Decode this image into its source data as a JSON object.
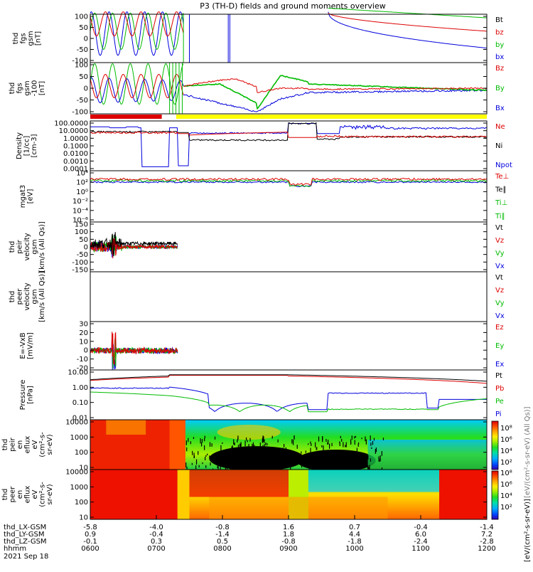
{
  "chart_data": {
    "type": "line",
    "title": "P3 (TH-D) fields and ground moments overview",
    "panels": [
      {
        "id": "fgs_gsm",
        "ylabel": [
          "thd",
          "fgs",
          "gsm",
          "[nT]"
        ],
        "yticks": [
          100,
          50,
          0,
          -50,
          -100
        ],
        "ylim": [
          -100,
          100
        ],
        "legend": [
          {
            "name": "Bt",
            "color": "#000000"
          },
          {
            "name": "bz",
            "color": "#dd0000"
          },
          {
            "name": "by",
            "color": "#00bb00"
          },
          {
            "name": "bx",
            "color": "#0000dd"
          }
        ]
      },
      {
        "id": "fgs_gsm_lim",
        "ylabel": [
          "thd",
          "fgs",
          "gsm",
          "-100",
          "[nT]"
        ],
        "yticks": [
          100,
          50,
          0,
          -50,
          -100
        ],
        "ylim": [
          -120,
          120
        ],
        "legend": [
          {
            "name": "Bz",
            "color": "#dd0000"
          },
          {
            "name": "By",
            "color": "#00bb00"
          },
          {
            "name": "Bx",
            "color": "#0000dd"
          }
        ]
      },
      {
        "id": "density",
        "ylabel": [
          "Density",
          "[1/cc]",
          "[cm-3]"
        ],
        "yticks": [
          "100.0000",
          "10.0000",
          "1.0000",
          "0.1000",
          "0.0100",
          "0.0010",
          "0.0001"
        ],
        "scale": "log",
        "ylim": [
          0.0001,
          100
        ],
        "legend": [
          {
            "name": "Ne",
            "color": "#dd0000"
          },
          {
            "name": "Ni",
            "color": "#000000"
          },
          {
            "name": "Npot",
            "color": "#0000dd"
          }
        ]
      },
      {
        "id": "temperature",
        "ylabel": [
          "mgat3",
          "[eV]"
        ],
        "yticks": [
          "10⁴",
          "10²",
          "10⁰",
          "10⁻²",
          "10⁻⁴",
          "10⁻⁶"
        ],
        "scale": "log",
        "legend": [
          {
            "name": "Te⊥",
            "color": "#dd0000"
          },
          {
            "name": "Te∥",
            "color": "#000000"
          },
          {
            "name": "Ti⊥",
            "color": "#00bb00"
          },
          {
            "name": "Ti∥",
            "color": "#00bb00"
          }
        ]
      },
      {
        "id": "peir_velocity",
        "ylabel": [
          "thd",
          "peir",
          "velocity",
          "gsm",
          "[km/s (All Qs)]"
        ],
        "yticks": [
          150,
          100,
          50,
          0,
          -50,
          -100,
          -150
        ],
        "ylim": [
          -150,
          150
        ],
        "legend": [
          {
            "name": "Vt",
            "color": "#000000"
          },
          {
            "name": "Vz",
            "color": "#dd0000"
          },
          {
            "name": "Vy",
            "color": "#00bb00"
          },
          {
            "name": "Vx",
            "color": "#0000dd"
          }
        ]
      },
      {
        "id": "peer_velocity",
        "ylabel": [
          "thd",
          "peer",
          "velocity",
          "gsm",
          "[km/s (All Qs)]"
        ],
        "yticks": [],
        "legend": [
          {
            "name": "Vt",
            "color": "#000000"
          },
          {
            "name": "Vz",
            "color": "#dd0000"
          },
          {
            "name": "Vy",
            "color": "#00bb00"
          },
          {
            "name": "Vx",
            "color": "#0000dd"
          }
        ]
      },
      {
        "id": "efield",
        "ylabel": [
          "E=-VxB",
          "[mV/m]"
        ],
        "yticks": [
          30,
          20,
          10,
          0,
          -10,
          -20
        ],
        "ylim": [
          -20,
          30
        ],
        "legend": [
          {
            "name": "Ez",
            "color": "#dd0000"
          },
          {
            "name": "Ey",
            "color": "#00bb00"
          },
          {
            "name": "Ex",
            "color": "#0000dd"
          }
        ]
      },
      {
        "id": "pressure",
        "ylabel": [
          "Pressure",
          "[nPa]"
        ],
        "yticks": [
          "10.00",
          "1.00",
          "0.10",
          "0.01"
        ],
        "scale": "log",
        "legend": [
          {
            "name": "Pt",
            "color": "#000000"
          },
          {
            "name": "Pb",
            "color": "#dd0000"
          },
          {
            "name": "Pe",
            "color": "#00bb00"
          },
          {
            "name": "Pi",
            "color": "#0000dd"
          }
        ]
      },
      {
        "id": "peir_spec",
        "ylabel": [
          "thd",
          "peir",
          "en",
          "eflux",
          "eV",
          "(cm²-s-",
          "sr-eV)"
        ],
        "yticks": [
          "10000",
          "1000",
          "100",
          "10"
        ],
        "scale": "log"
      },
      {
        "id": "peer_spec",
        "ylabel": [
          "thd",
          "peer",
          "en",
          "eflux",
          "eV",
          "(cm²-s-",
          "sr-eV)"
        ],
        "yticks": [
          "10000",
          "1000",
          "100",
          "10"
        ],
        "scale": "log"
      }
    ],
    "colorbar": {
      "label": "[eV/(cm²-s-sr-eV)]",
      "label_top": "[eV/(cm²-s-sr-eV) (All Qs)]",
      "ticks_top": [
        "10⁸",
        "10⁶",
        "10⁴",
        "10²"
      ],
      "ticks_bottom": [
        "10⁸",
        "10⁶",
        "10⁴",
        "10²"
      ],
      "colors": [
        "#3300aa",
        "#0044ff",
        "#00aaff",
        "#00ddaa",
        "#22dd22",
        "#aaee00",
        "#ffee00",
        "#ffaa00",
        "#ff5500",
        "#ee0000",
        "#cc0000"
      ]
    },
    "x_axis": {
      "row_labels": [
        "thd_LX-GSM",
        "thd_LY-GSM",
        "thd_LZ-GSM",
        "hhmm",
        "2021 Sep 18"
      ],
      "ticks": [
        {
          "lx": "-5.8",
          "ly": "0.9",
          "lz": "-0.1",
          "hhmm": "0600"
        },
        {
          "lx": "-4.0",
          "ly": "-0.4",
          "lz": "0.3",
          "hhmm": "0700"
        },
        {
          "lx": "-0.8",
          "ly": "-1.4",
          "lz": "0.5",
          "hhmm": "0800"
        },
        {
          "lx": "1.6",
          "ly": "1.8",
          "lz": "-0.8",
          "hhmm": "0900"
        },
        {
          "lx": "0.7",
          "ly": "4.4",
          "lz": "-1.8",
          "hhmm": "1000"
        },
        {
          "lx": "-0.4",
          "ly": "6.0",
          "lz": "-2.4",
          "hhmm": "1100"
        },
        {
          "lx": "-1.4",
          "ly": "7.2",
          "lz": "-2.8",
          "hhmm": "1200"
        }
      ]
    },
    "mode_bar": [
      {
        "from": "0600",
        "to": "0705",
        "color": "#dd0000"
      },
      {
        "from": "0705",
        "to": "0718",
        "color": "#ffffff"
      },
      {
        "from": "0718",
        "to": "1200",
        "color": "#ffff00"
      }
    ]
  }
}
